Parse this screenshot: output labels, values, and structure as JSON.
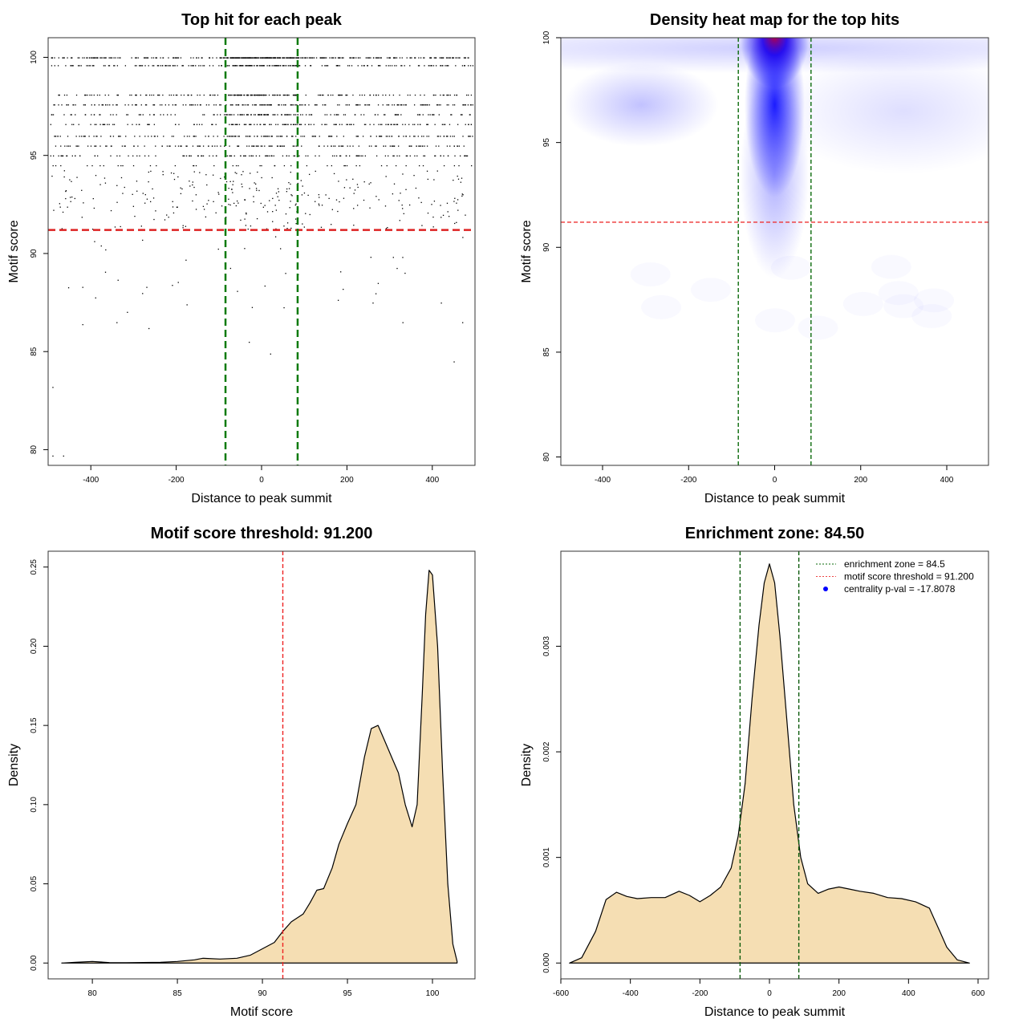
{
  "chart_data": [
    {
      "type": "scatter",
      "title": "Top hit for each peak",
      "xlabel": "Distance to peak summit",
      "ylabel": "Motif score",
      "xlim": [
        -500,
        500
      ],
      "ylim": [
        79.2,
        101
      ],
      "xticks": [
        -400,
        -200,
        0,
        200,
        400
      ],
      "yticks": [
        80,
        85,
        90,
        95,
        100
      ],
      "score_levels": [
        100,
        99.6,
        98.1,
        97.6,
        97.1,
        96.6,
        96.0,
        95.5,
        95.0,
        94.5,
        94.0,
        93.5,
        93.0,
        92.5,
        92.0,
        91.5
      ],
      "sparse_points": [
        [
          -490,
          79.7
        ],
        [
          -465,
          79.7
        ],
        [
          -490,
          83.2
        ],
        [
          -420,
          86.4
        ],
        [
          -340,
          86.5
        ],
        [
          -265,
          86.2
        ],
        [
          20,
          84.9
        ],
        [
          450,
          84.5
        ],
        [
          330,
          86.5
        ],
        [
          470,
          86.5
        ],
        [
          -30,
          85.5
        ],
        [
          -420,
          88.3
        ],
        [
          -270,
          88.3
        ],
        [
          -210,
          88.4
        ],
        [
          190,
          88.2
        ],
        [
          260,
          87.5
        ],
        [
          420,
          87.5
        ]
      ],
      "hlines": [
        {
          "y": 91.2,
          "color": "#dd2222"
        }
      ],
      "vlines": [
        {
          "x": -84.5,
          "color": "#0a7a0a"
        },
        {
          "x": 84.5,
          "color": "#0a7a0a"
        }
      ]
    },
    {
      "type": "heatmap",
      "title": "Density heat map for the top hits",
      "xlabel": "Distance to peak summit",
      "ylabel": "Motif score",
      "xlim": [
        -497,
        497
      ],
      "ylim": [
        79.6,
        100
      ],
      "xticks": [
        -400,
        -200,
        0,
        200,
        400
      ],
      "yticks": [
        80,
        85,
        90,
        95,
        100
      ],
      "colorscale": [
        "#ffffff",
        "#0000ff",
        "#ff0000"
      ],
      "hotspots": [
        {
          "x": 0,
          "y": 100,
          "sx": 40,
          "sy": 1.2,
          "level": 1.0
        },
        {
          "x": 0,
          "y": 96.8,
          "sx": 35,
          "sy": 2.2,
          "level": 0.55
        },
        {
          "x": 0,
          "y": 93.5,
          "sx": 40,
          "sy": 2.5,
          "level": 0.2
        },
        {
          "x": -310,
          "y": 96.8,
          "sx": 90,
          "sy": 1.0,
          "level": 0.15
        },
        {
          "x": 0,
          "y": 99.5,
          "sx": 500,
          "sy": 0.6,
          "level": 0.12
        },
        {
          "x": 300,
          "y": 96.5,
          "sx": 150,
          "sy": 1.5,
          "level": 0.08
        }
      ],
      "hlines": [
        {
          "y": 91.2,
          "color": "#ee3333"
        }
      ],
      "vlines": [
        {
          "x": -84.5,
          "color": "#0a6a0a"
        },
        {
          "x": 84.5,
          "color": "#0a6a0a"
        }
      ]
    },
    {
      "type": "area",
      "title": "Motif score threshold: 91.200",
      "xlabel": "Motif score",
      "ylabel": "Density",
      "xlim": [
        77.4,
        102.5
      ],
      "ylim": [
        -0.01,
        0.26
      ],
      "xticks": [
        80,
        85,
        90,
        95,
        100
      ],
      "yticks": [
        "0.00",
        "0.05",
        "0.10",
        "0.15",
        "0.20",
        "0.25"
      ],
      "fill": "#f5deb3",
      "x": [
        78.2,
        79,
        80,
        81,
        82,
        84,
        85,
        86,
        86.5,
        87.5,
        88.5,
        89.3,
        90,
        90.7,
        91.2,
        91.7,
        92.4,
        92.8,
        93.2,
        93.6,
        94.1,
        94.5,
        95,
        95.5,
        96,
        96.4,
        96.8,
        97.2,
        97.6,
        98,
        98.4,
        98.8,
        99.1,
        99.4,
        99.6,
        99.8,
        100.0,
        100.3,
        100.6,
        100.9,
        101.2,
        101.45
      ],
      "y": [
        0,
        0.0005,
        0.001,
        0.0003,
        0.0002,
        0.0005,
        0.001,
        0.002,
        0.003,
        0.0025,
        0.003,
        0.005,
        0.009,
        0.013,
        0.02,
        0.026,
        0.031,
        0.038,
        0.046,
        0.047,
        0.06,
        0.075,
        0.088,
        0.1,
        0.13,
        0.148,
        0.15,
        0.14,
        0.13,
        0.12,
        0.1,
        0.086,
        0.1,
        0.17,
        0.22,
        0.248,
        0.245,
        0.2,
        0.12,
        0.05,
        0.012,
        0.001
      ],
      "vlines": [
        {
          "x": 91.2,
          "color": "#ee2222"
        }
      ]
    },
    {
      "type": "area",
      "title": "Enrichment zone: 84.50",
      "xlabel": "Distance to peak summit",
      "ylabel": "Density",
      "xlim": [
        -600,
        630
      ],
      "ylim": [
        -0.00015,
        0.0039
      ],
      "xticks": [
        -600,
        -400,
        -200,
        0,
        200,
        400,
        600
      ],
      "yticks": [
        "0.000",
        "0.001",
        "0.002",
        "0.003"
      ],
      "fill": "#f5deb3",
      "x": [
        -575,
        -540,
        -500,
        -470,
        -440,
        -410,
        -380,
        -340,
        -300,
        -260,
        -230,
        -200,
        -170,
        -140,
        -110,
        -90,
        -70,
        -50,
        -30,
        -15,
        0,
        15,
        30,
        50,
        70,
        90,
        110,
        140,
        170,
        200,
        230,
        260,
        300,
        340,
        380,
        420,
        460,
        490,
        510,
        540,
        575
      ],
      "y": [
        0,
        5e-05,
        0.0003,
        0.0006,
        0.00067,
        0.00063,
        0.00061,
        0.00062,
        0.00062,
        0.00068,
        0.00064,
        0.00058,
        0.00064,
        0.00072,
        0.0009,
        0.0012,
        0.0017,
        0.0025,
        0.0032,
        0.0036,
        0.00378,
        0.0036,
        0.0031,
        0.0023,
        0.0015,
        0.001,
        0.00075,
        0.00066,
        0.0007,
        0.00072,
        0.0007,
        0.00068,
        0.00066,
        0.00062,
        0.00061,
        0.00058,
        0.00052,
        0.0003,
        0.00015,
        3e-05,
        0
      ],
      "vlines": [
        {
          "x": -84.5,
          "color": "#0a5a0a"
        },
        {
          "x": 84.5,
          "color": "#0a5a0a"
        }
      ],
      "legend": {
        "position": "top-right",
        "entries": [
          {
            "label": "enrichment zone = 84.5",
            "color": "#0a6a0a",
            "style": "dotted"
          },
          {
            "label": "motif score threshold = 91.200",
            "color": "#ee4444",
            "style": "dotted"
          },
          {
            "label": "centrality p-val = -17.8078",
            "color": "#0000ff",
            "style": "point"
          }
        ]
      }
    }
  ]
}
